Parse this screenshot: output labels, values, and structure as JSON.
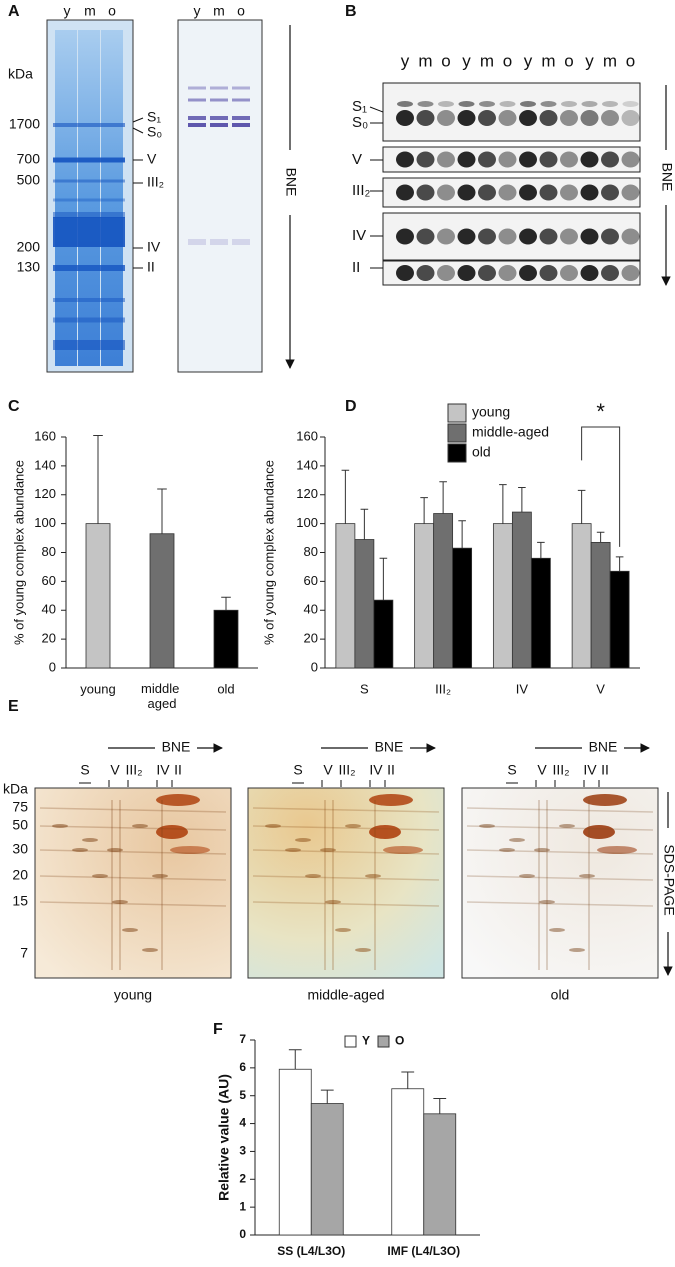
{
  "gels": {
    "A": {
      "panel": "A",
      "lanes1": [
        "y",
        "m",
        "o"
      ],
      "lanes2": [
        "y",
        "m",
        "o"
      ],
      "unit": "kDa",
      "markers": [
        1700,
        700,
        500,
        200,
        130
      ],
      "complexes": [
        "S₁",
        "S₀",
        "V",
        "III₂",
        "IV",
        "II"
      ],
      "direction": "BNE"
    },
    "B": {
      "panel": "B",
      "lanes": [
        "y",
        "m",
        "o",
        "y",
        "m",
        "o",
        "y",
        "m",
        "o",
        "y",
        "m",
        "o"
      ],
      "complexes": [
        "S₁",
        "S₀",
        "V",
        "III₂",
        "IV",
        "II"
      ],
      "direction": "BNE"
    },
    "E": {
      "panel": "E",
      "direction": "BNE",
      "complexes": [
        "S",
        "V",
        "III₂",
        "IV",
        "II"
      ],
      "unit": "kDa",
      "markers": [
        75,
        50,
        30,
        20,
        15,
        7
      ],
      "second_direction": "SDS-PAGE",
      "groups": [
        "young",
        "middle-aged",
        "old"
      ]
    }
  },
  "chart_data": [
    {
      "type": "bar",
      "panel": "C",
      "y_label": "% of young complex abundance",
      "categories": [
        "young",
        "middle aged",
        "old"
      ],
      "values": [
        100,
        93,
        40
      ],
      "errors": [
        61,
        31,
        9
      ],
      "colors": [
        "#c4c4c4",
        "#6f6f6f",
        "#000000"
      ],
      "ylim": [
        0,
        160
      ],
      "yticks": [
        0,
        20,
        40,
        60,
        80,
        100,
        120,
        140,
        160
      ]
    },
    {
      "type": "bar",
      "panel": "D",
      "y_label": "% of young complex abundance",
      "categories": [
        "S",
        "III₂",
        "IV",
        "V"
      ],
      "series": [
        {
          "name": "young",
          "color": "#c4c4c4",
          "values": [
            100,
            100,
            100,
            100
          ],
          "errors": [
            37,
            18,
            27,
            23
          ]
        },
        {
          "name": "middle-aged",
          "color": "#6f6f6f",
          "values": [
            89,
            107,
            108,
            87
          ],
          "errors": [
            21,
            22,
            17,
            7
          ]
        },
        {
          "name": "old",
          "color": "#000000",
          "values": [
            47,
            83,
            76,
            67
          ],
          "errors": [
            29,
            19,
            11,
            10
          ]
        }
      ],
      "annotation": "*",
      "ylim": [
        0,
        160
      ],
      "yticks": [
        0,
        20,
        40,
        60,
        80,
        100,
        120,
        140,
        160
      ]
    },
    {
      "type": "bar",
      "panel": "F",
      "y_label": "Relative value (AU)",
      "categories": [
        "SS (L4/L3O)",
        "IMF (L4/L3O)"
      ],
      "series": [
        {
          "name": "Y",
          "color": "#ffffff",
          "values": [
            5.95,
            5.25
          ],
          "errors": [
            0.7,
            0.6
          ]
        },
        {
          "name": "O",
          "color": "#a6a6a6",
          "values": [
            4.72,
            4.35
          ],
          "errors": [
            0.48,
            0.55
          ]
        }
      ],
      "ylim": [
        0,
        7
      ],
      "yticks": [
        0,
        1,
        2,
        3,
        4,
        5,
        6,
        7
      ]
    }
  ]
}
